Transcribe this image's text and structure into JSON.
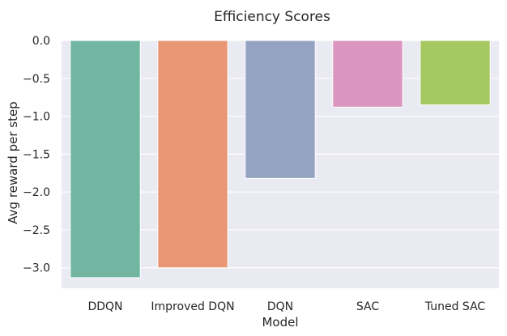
{
  "chart_data": {
    "type": "bar",
    "title": "Efficiency Scores",
    "xlabel": "Model",
    "ylabel": "Avg reward per step",
    "categories": [
      "DDQN",
      "Improved DQN",
      "DQN",
      "SAC",
      "Tuned SAC"
    ],
    "values": [
      -3.13,
      -3.0,
      -1.82,
      -0.88,
      -0.85
    ],
    "ylim": [
      -3.27,
      0.0
    ],
    "yticks": [
      0.0,
      -0.5,
      -1.0,
      -1.5,
      -2.0,
      -2.5,
      -3.0
    ],
    "ytick_labels": [
      "0.0",
      "−0.5",
      "−1.0",
      "−1.5",
      "−2.0",
      "−2.5",
      "−3.0"
    ],
    "grid": true,
    "legend": "none"
  },
  "colors": {
    "plot_background": "#eaeaf2",
    "grid": "#ffffff",
    "bars": [
      "#72b6a1",
      "#e99675",
      "#95a3c3",
      "#db96c0",
      "#a5c861"
    ]
  }
}
